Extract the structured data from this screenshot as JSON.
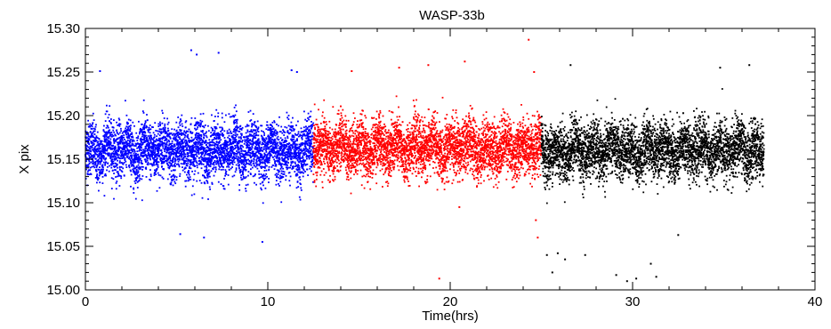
{
  "chart_data": {
    "type": "scatter",
    "title": "WASP-33b",
    "xlabel": "Time(hrs)",
    "ylabel": "X pix",
    "xlim": [
      0,
      40
    ],
    "ylim": [
      15.0,
      15.3
    ],
    "x_ticks": [
      "0",
      "10",
      "20",
      "30",
      "40"
    ],
    "y_ticks": [
      "15.00",
      "15.05",
      "15.10",
      "15.15",
      "15.20",
      "15.25",
      "15.30"
    ],
    "grid": false,
    "legend": "none",
    "series": [
      {
        "color": "#0000ff",
        "x_range": [
          0.0,
          12.5
        ],
        "center": 15.16,
        "spread": 0.035,
        "outliers": [
          [
            0.8,
            15.251
          ],
          [
            5.2,
            15.064
          ],
          [
            5.8,
            15.275
          ],
          [
            6.1,
            15.27
          ],
          [
            6.5,
            15.06
          ],
          [
            7.3,
            15.272
          ],
          [
            9.7,
            15.055
          ],
          [
            11.3,
            15.252
          ],
          [
            11.6,
            15.25
          ]
        ]
      },
      {
        "color": "#ff0000",
        "x_range": [
          12.5,
          25.0
        ],
        "center": 15.163,
        "spread": 0.035,
        "outliers": [
          [
            14.6,
            15.251
          ],
          [
            17.2,
            15.255
          ],
          [
            18.8,
            15.258
          ],
          [
            19.4,
            15.013
          ],
          [
            20.5,
            15.095
          ],
          [
            20.8,
            15.262
          ],
          [
            24.3,
            15.287
          ],
          [
            24.6,
            15.25
          ],
          [
            24.8,
            15.06
          ],
          [
            24.7,
            15.08
          ]
        ]
      },
      {
        "color": "#000000",
        "x_range": [
          25.0,
          37.2
        ],
        "center": 15.16,
        "spread": 0.035,
        "outliers": [
          [
            25.3,
            15.04
          ],
          [
            25.6,
            15.02
          ],
          [
            25.9,
            15.042
          ],
          [
            26.3,
            15.035
          ],
          [
            26.6,
            15.258
          ],
          [
            27.4,
            15.04
          ],
          [
            29.1,
            15.017
          ],
          [
            29.7,
            15.01
          ],
          [
            30.2,
            15.013
          ],
          [
            31.0,
            15.03
          ],
          [
            31.3,
            15.015
          ],
          [
            32.5,
            15.063
          ],
          [
            34.8,
            15.255
          ],
          [
            36.4,
            15.258
          ]
        ]
      }
    ]
  }
}
